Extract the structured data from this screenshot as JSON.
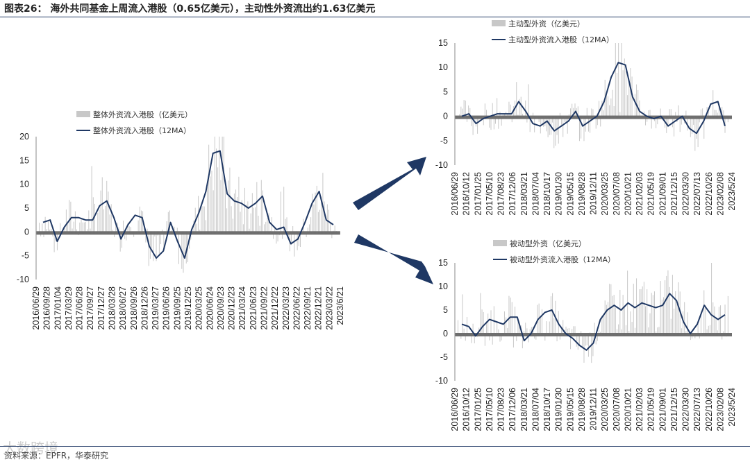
{
  "title": "图表26：  海外共同基金上周流入港股（0.65亿美元），主动性外资流出约1.63亿美元",
  "source": "资料来源：EPFR，华泰研究",
  "watermark": "大数跨境",
  "colors": {
    "bar": "#c8c8c8",
    "line": "#1f3864",
    "arrow": "#1f3864",
    "zero_band": "#7a7a7a"
  },
  "chart_data": [
    {
      "type": "bar",
      "title": "",
      "legend": [
        "整体外资流入港股（亿美元）",
        "整体外资流入港股（12MA）"
      ],
      "x": [
        "2016/06/29",
        "2016/09/28",
        "2017/01/04",
        "2017/03/29",
        "2017/06/28",
        "2017/09/27",
        "2017/12/27",
        "2018/03/28",
        "2018/06/27",
        "2018/09/26",
        "2018/12/26",
        "2019/03/27",
        "2019/06/26",
        "2019/09/25",
        "2019/12/25",
        "2020/03/25",
        "2020/06/24",
        "2020/09/23",
        "2020/12/23",
        "2021/03/24",
        "2021/06/23",
        "2021/09/22",
        "2021/12/22",
        "2022/03/23",
        "2022/06/22",
        "2022/09/21",
        "2022/12/21",
        "2023/03/22",
        "2023/6/21"
      ],
      "y_ticks": [
        20,
        15,
        10,
        5,
        0,
        -5,
        -10
      ],
      "ylim": [
        -10,
        20
      ],
      "ma12_approx": [
        2,
        2.5,
        -2,
        1,
        3,
        3,
        2.5,
        2.5,
        5.5,
        6.5,
        3,
        -1.5,
        1.5,
        3.5,
        3,
        -3,
        -5.5,
        -4,
        2,
        -2,
        -5.5,
        0.5,
        4,
        8.5,
        16.5,
        17,
        8,
        6.5,
        6,
        5,
        6,
        7.5,
        2,
        0.5,
        1,
        -2.5,
        -1.5,
        2,
        6,
        8.5,
        2.5,
        1.5
      ]
    },
    {
      "type": "bar",
      "title": "",
      "legend": [
        "主动型外资（亿美元）",
        "主动型外资流入港股（12MA）"
      ],
      "x": [
        "2016/06/29",
        "2016/10/12",
        "2017/01/25",
        "2017/05/10",
        "2017/08/23",
        "2017/12/06",
        "2018/03/21",
        "2018/07/04",
        "2018/10/17",
        "2019/01/30",
        "2019/05/15",
        "2019/08/28",
        "2019/12/11",
        "2020/03/25",
        "2020/07/08",
        "2020/10/21",
        "2021/02/03",
        "2021/05/19",
        "2021/09/01",
        "2021/12/15",
        "2022/03/30",
        "2022/07/13",
        "2022/10/26",
        "2023/02/08",
        "2023/5/24"
      ],
      "y_ticks": [
        15,
        10,
        5,
        0,
        -5,
        -10
      ],
      "ylim": [
        -10,
        15
      ],
      "ma12_approx": [
        0,
        0.5,
        -1.5,
        -0.5,
        0,
        0.5,
        0.5,
        0.5,
        3,
        1,
        -1.5,
        -2,
        -1,
        -3,
        -2,
        -1,
        1,
        -2,
        -1,
        0,
        3,
        8,
        11,
        10.5,
        4,
        1,
        0,
        -0.5,
        0,
        -2,
        -1,
        0,
        -2.5,
        -3.5,
        -1,
        2.5,
        3,
        -2
      ]
    },
    {
      "type": "bar",
      "title": "",
      "legend": [
        "被动型外资（亿美元）",
        "被动型外资流入港股（12MA）"
      ],
      "x": [
        "2016/06/29",
        "2016/10/12",
        "2017/01/25",
        "2017/05/10",
        "2017/08/23",
        "2017/12/06",
        "2018/03/21",
        "2018/07/04",
        "2018/10/17",
        "2019/01/30",
        "2019/05/15",
        "2019/08/28",
        "2019/12/11",
        "2020/03/25",
        "2020/07/08",
        "2020/10/21",
        "2021/02/03",
        "2021/05/19",
        "2021/09/01",
        "2021/12/15",
        "2022/03/30",
        "2022/07/13",
        "2022/10/26",
        "2023/02/08",
        "2023/5/24"
      ],
      "y_ticks": [
        15,
        10,
        5,
        0,
        -5,
        -10
      ],
      "ylim": [
        -10,
        15
      ],
      "ma12_approx": [
        2,
        1.5,
        -0.5,
        1.5,
        3,
        2.5,
        2,
        3.5,
        3.5,
        -1.5,
        0,
        3,
        4.5,
        5,
        2,
        0,
        -1,
        -2.5,
        -3.5,
        -2,
        3,
        5,
        6,
        5,
        6.5,
        5.5,
        6.5,
        6,
        5.5,
        6,
        8.5,
        7,
        2.5,
        0,
        2,
        6,
        4,
        3,
        4
      ]
    }
  ]
}
